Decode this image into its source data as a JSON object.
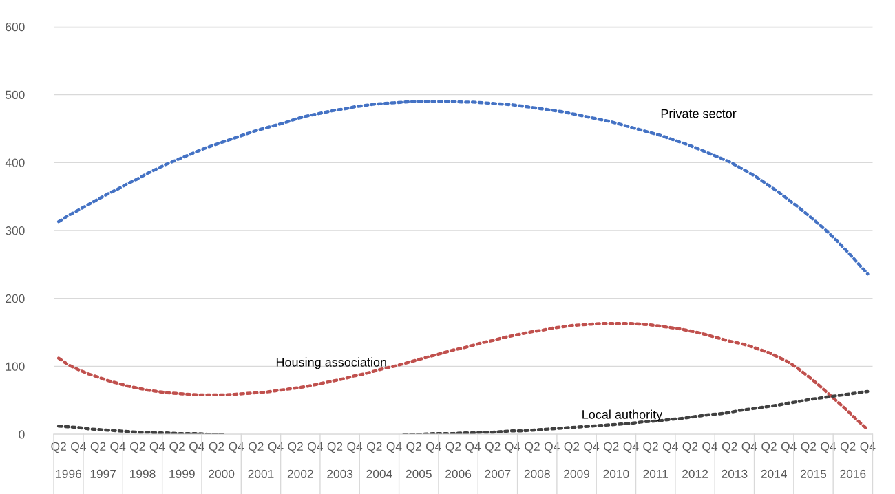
{
  "chart_data": {
    "type": "line",
    "categories": [
      "Q2",
      null,
      "Q4",
      null,
      "Q2",
      null,
      "Q4",
      null,
      "Q2",
      null,
      "Q4",
      null,
      "Q2",
      null,
      "Q4",
      null,
      "Q2",
      null,
      "Q4",
      null,
      "Q2",
      null,
      "Q4",
      null,
      "Q2",
      null,
      "Q4",
      null,
      "Q2",
      null,
      "Q4",
      null,
      "Q2",
      null,
      "Q4",
      null,
      "Q2",
      null,
      "Q4",
      null,
      "Q2",
      null,
      "Q4",
      null,
      "Q2",
      null,
      "Q4",
      null,
      "Q2",
      null,
      "Q4",
      null,
      "Q2",
      null,
      "Q4",
      null,
      "Q2",
      null,
      "Q4",
      null,
      "Q2",
      null,
      "Q4",
      null,
      "Q2",
      null,
      "Q4",
      null,
      "Q2",
      null,
      "Q4",
      null,
      "Q2",
      null,
      "Q4",
      null,
      "Q2",
      null,
      "Q4",
      null,
      "Q2",
      null,
      "Q4"
    ],
    "series": [
      {
        "name": "Private sector",
        "color": "#4472c4",
        "values": [
          313,
          322,
          330,
          338,
          346,
          354,
          361,
          369,
          376,
          384,
          391,
          398,
          404,
          410,
          416,
          422,
          427,
          432,
          437,
          442,
          447,
          451,
          455,
          459,
          464,
          468,
          471,
          474,
          477,
          479,
          482,
          484,
          486,
          487,
          488,
          489,
          490,
          490,
          490,
          490,
          490,
          489,
          489,
          488,
          487,
          486,
          485,
          483,
          481,
          479,
          477,
          475,
          472,
          469,
          466,
          463,
          460,
          456,
          452,
          448,
          444,
          440,
          435,
          430,
          425,
          419,
          413,
          407,
          401,
          393,
          385,
          376,
          366,
          356,
          345,
          334,
          322,
          310,
          297,
          283,
          268,
          252,
          236
        ]
      },
      {
        "name": "Housing association",
        "color": "#c0504d",
        "values": [
          112,
          102,
          95,
          89,
          84,
          79,
          75,
          71,
          68,
          65,
          63,
          61,
          60,
          59,
          58,
          58,
          58,
          58,
          59,
          60,
          61,
          62,
          64,
          66,
          68,
          70,
          73,
          76,
          79,
          82,
          86,
          89,
          93,
          97,
          100,
          104,
          108,
          112,
          116,
          120,
          124,
          127,
          131,
          135,
          138,
          142,
          145,
          148,
          151,
          153,
          156,
          158,
          160,
          161,
          162,
          163,
          163,
          163,
          163,
          162,
          161,
          159,
          157,
          155,
          152,
          149,
          145,
          141,
          137,
          134,
          130,
          125,
          120,
          113,
          106,
          96,
          85,
          73,
          60,
          47,
          34,
          20,
          7
        ]
      },
      {
        "name": "Local authority",
        "color": "#404040",
        "values": [
          12,
          11,
          10,
          8,
          7,
          6,
          5,
          4,
          3,
          3,
          2,
          2,
          1,
          1,
          1,
          0,
          0,
          0,
          null,
          null,
          null,
          null,
          null,
          null,
          null,
          null,
          null,
          null,
          null,
          null,
          null,
          null,
          null,
          null,
          null,
          0,
          0,
          0,
          1,
          1,
          1,
          2,
          2,
          3,
          3,
          4,
          5,
          5,
          6,
          7,
          8,
          9,
          10,
          11,
          12,
          13,
          14,
          15,
          16,
          18,
          19,
          20,
          22,
          23,
          25,
          27,
          29,
          30,
          32,
          35,
          37,
          39,
          41,
          43,
          46,
          48,
          51,
          53,
          55,
          57,
          59,
          61,
          63
        ]
      }
    ],
    "annotations": [
      "1996",
      "1997",
      "1998",
      "1999",
      "2000",
      "2001",
      "2002",
      "2003",
      "2004",
      "2005",
      "2006",
      "2007",
      "2008",
      "2009",
      "2010",
      "2011",
      "2012",
      "2013",
      "2014",
      "2015",
      "2016"
    ],
    "ylim": [
      0,
      600
    ],
    "yticks": [
      0,
      100,
      200,
      300,
      400,
      500,
      600
    ],
    "grid": "y",
    "line_style": "dotted",
    "legend": false
  }
}
